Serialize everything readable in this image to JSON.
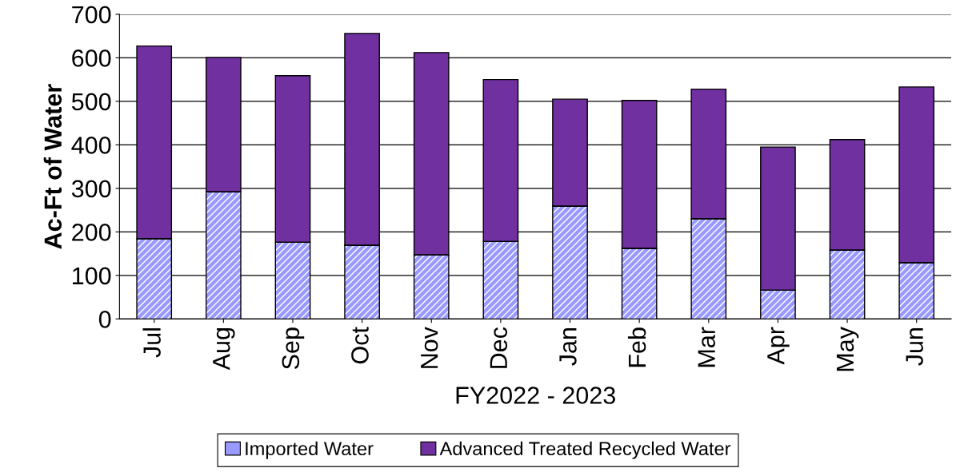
{
  "chart_data": {
    "type": "bar",
    "stacked": true,
    "xlabel": "FY2022 - 2023",
    "ylabel": "Ac-Ft of Water",
    "categories": [
      "Jul",
      "Aug",
      "Sep",
      "Oct",
      "Nov",
      "Dec",
      "Jan",
      "Feb",
      "Mar",
      "Apr",
      "May",
      "Jun"
    ],
    "series": [
      {
        "name": "Imported Water",
        "color": "#9999ff",
        "values": [
          184,
          292,
          176,
          169,
          147,
          178,
          259,
          162,
          230,
          66,
          158,
          129
        ]
      },
      {
        "name": "Advanced Treated Recycled Water",
        "color": "#7030a0",
        "values": [
          443,
          309,
          383,
          487,
          465,
          372,
          246,
          340,
          298,
          329,
          254,
          404
        ]
      }
    ],
    "ylim": [
      0,
      700
    ],
    "yticks": [
      0,
      100,
      200,
      300,
      400,
      500,
      600,
      700
    ],
    "grid": "y",
    "legend": "bottom"
  }
}
